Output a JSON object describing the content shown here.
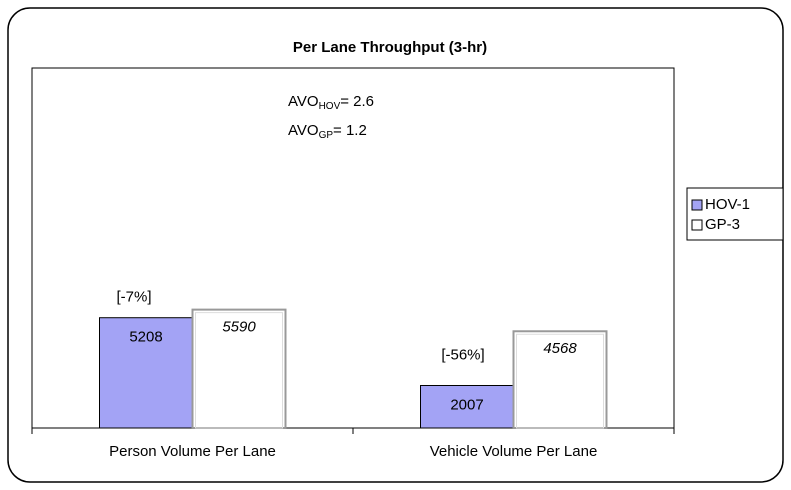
{
  "chart_data": {
    "type": "bar",
    "title": "Per Lane Throughput (3-hr)",
    "categories": [
      "Person Volume Per Lane",
      "Vehicle Volume Per Lane"
    ],
    "series": [
      {
        "name": "HOV-1",
        "color": "#a3a3f5",
        "values": [
          5208,
          2007
        ]
      },
      {
        "name": "GP-3",
        "color": "#ffffff",
        "values": [
          5590,
          4568
        ]
      }
    ],
    "change_labels": [
      "[-7%]",
      "[-56%]"
    ],
    "annotations": [
      {
        "text": "AVO",
        "sub": "HOV",
        "suffix": "= 2.6"
      },
      {
        "text": "AVO",
        "sub": "GP",
        "suffix": "= 1.2"
      }
    ],
    "ylim": [
      0,
      17000
    ],
    "legend": "right"
  }
}
